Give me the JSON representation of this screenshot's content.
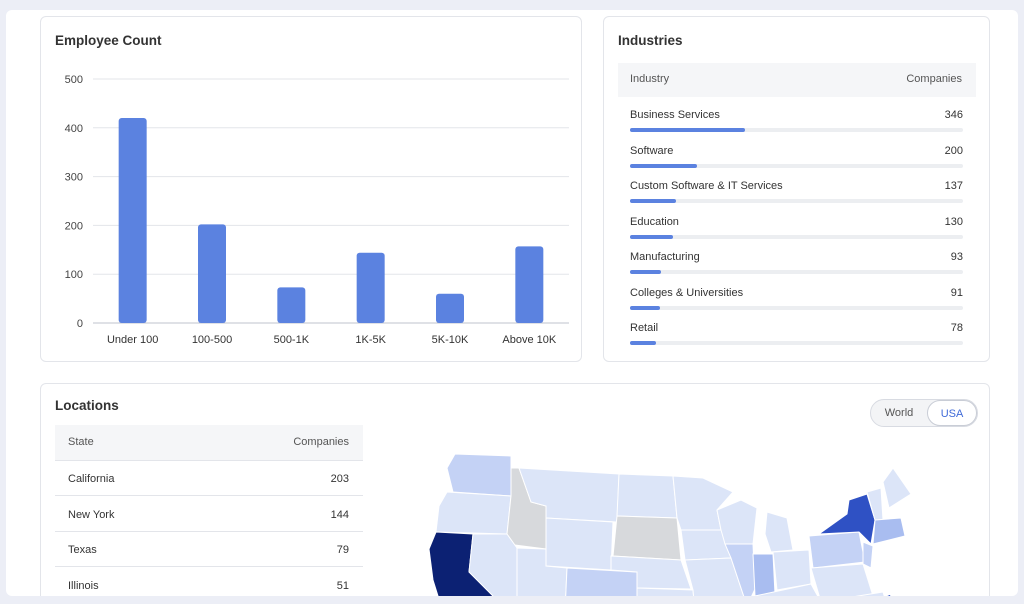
{
  "employee_count": {
    "title": "Employee Count",
    "chart_data": {
      "type": "bar",
      "title": "Employee Count",
      "categories": [
        "Under 100",
        "100-500",
        "500-1K",
        "1K-5K",
        "5K-10K",
        "Above 10K"
      ],
      "values": [
        420,
        202,
        73,
        144,
        60,
        157
      ],
      "yticks": [
        0,
        100,
        200,
        300,
        400,
        500
      ],
      "ylim": [
        0,
        500
      ],
      "grid": true,
      "bar_color": "#5b82e0"
    }
  },
  "industries": {
    "title": "Industries",
    "header": {
      "industry": "Industry",
      "companies": "Companies"
    },
    "rows": [
      {
        "name": "Business Services",
        "count": "346",
        "value": 346
      },
      {
        "name": "Software",
        "count": "200",
        "value": 200
      },
      {
        "name": "Custom Software & IT Services",
        "count": "137",
        "value": 137
      },
      {
        "name": "Education",
        "count": "130",
        "value": 130
      },
      {
        "name": "Manufacturing",
        "count": "93",
        "value": 93
      },
      {
        "name": "Colleges & Universities",
        "count": "91",
        "value": 91
      },
      {
        "name": "Retail",
        "count": "78",
        "value": 78
      }
    ],
    "bar_max": 1000
  },
  "locations": {
    "title": "Locations",
    "toggle": {
      "world": "World",
      "usa": "USA",
      "selected": "USA"
    },
    "header": {
      "state": "State",
      "companies": "Companies"
    },
    "rows": [
      {
        "state": "California",
        "count": "203"
      },
      {
        "state": "New York",
        "count": "144"
      },
      {
        "state": "Texas",
        "count": "79"
      },
      {
        "state": "Illinois",
        "count": "51"
      }
    ]
  },
  "colors": {
    "accent": "#5b82e0",
    "map_light": "#dce5f8",
    "map_mid": "#c4d2f5",
    "map_dark": "#2f51c4",
    "map_darkest": "#0c2173",
    "map_gray": "#d7d9dc"
  }
}
